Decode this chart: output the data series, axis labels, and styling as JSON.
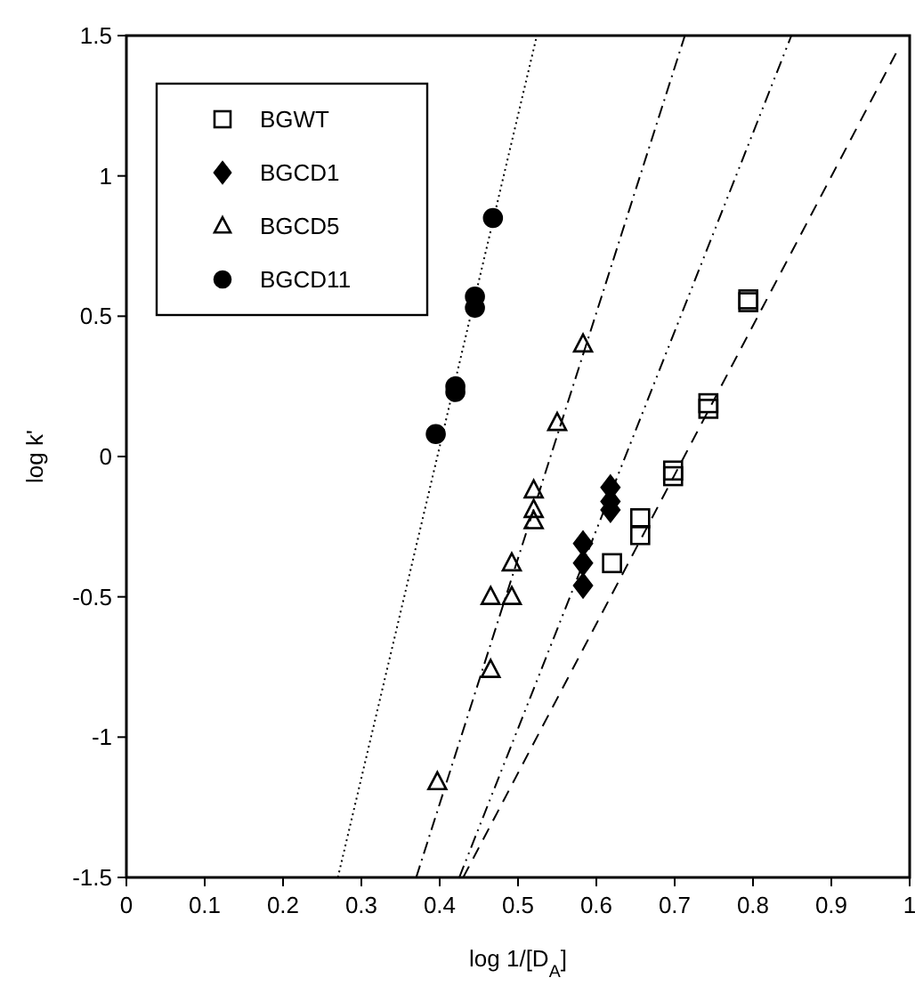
{
  "chart_data": {
    "type": "scatter",
    "xlabel": "log 1/[D$_{A}$]",
    "ylabel": "log k'",
    "xlim": [
      0,
      1
    ],
    "ylim": [
      -1.5,
      1.5
    ],
    "xticks": [
      0,
      0.1,
      0.2,
      0.3,
      0.4,
      0.5,
      0.6,
      0.7,
      0.8,
      0.9,
      1
    ],
    "yticks": [
      -1.5,
      -1,
      -0.5,
      0,
      0.5,
      1,
      1.5
    ],
    "grid": false,
    "legend": "top left",
    "series": [
      {
        "name": "BGWT",
        "color": "#000000",
        "marker": "square",
        "x": [
          0.62,
          0.656,
          0.656,
          0.698,
          0.698,
          0.743,
          0.743,
          0.794,
          0.794
        ],
        "values": [
          -0.38,
          -0.22,
          -0.28,
          -0.07,
          -0.05,
          0.17,
          0.19,
          0.55,
          0.56
        ]
      },
      {
        "name": "BGCD1",
        "color": "#000000",
        "marker": "diamond",
        "x": [
          0.583,
          0.583,
          0.583,
          0.618,
          0.618,
          0.618
        ],
        "values": [
          -0.31,
          -0.38,
          -0.46,
          -0.11,
          -0.16,
          -0.19
        ]
      },
      {
        "name": "BGCD5",
        "color": "#000000",
        "marker": "triangle",
        "x": [
          0.397,
          0.465,
          0.465,
          0.492,
          0.492,
          0.52,
          0.52,
          0.52,
          0.55,
          0.583
        ],
        "values": [
          -1.16,
          -0.76,
          -0.5,
          -0.5,
          -0.38,
          -0.23,
          -0.19,
          -0.12,
          0.12,
          0.4
        ]
      },
      {
        "name": "BGCD11",
        "color": "#000000",
        "marker": "circle",
        "x": [
          0.395,
          0.42,
          0.42,
          0.445,
          0.445,
          0.468
        ],
        "values": [
          0.08,
          0.23,
          0.25,
          0.53,
          0.57,
          0.85
        ]
      },
      {
        "type": "line",
        "color": "#000000",
        "line_style": "dashed",
        "x": [
          0.43,
          0.985
        ],
        "values": [
          -1.5,
          1.45
        ]
      },
      {
        "type": "line",
        "color": "#000000",
        "line_style": "dashdotdot",
        "x": [
          0.425,
          0.849
        ],
        "values": [
          -1.5,
          1.5
        ]
      },
      {
        "type": "line",
        "color": "#000000",
        "line_style": "dashdot",
        "x": [
          0.37,
          0.713
        ],
        "values": [
          -1.5,
          1.5
        ]
      },
      {
        "type": "line",
        "color": "#000000",
        "line_style": "dotted",
        "x": [
          0.27,
          0.524
        ],
        "values": [
          -1.5,
          1.5
        ]
      }
    ]
  }
}
